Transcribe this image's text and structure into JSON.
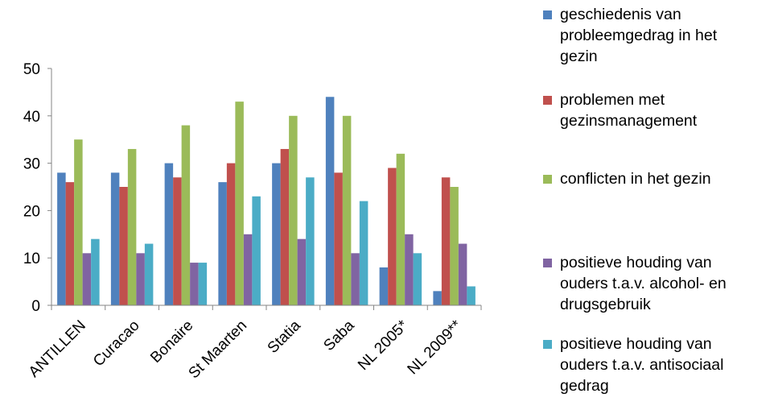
{
  "chart_data": {
    "type": "bar",
    "title": "",
    "xlabel": "",
    "ylabel": "",
    "ylim": [
      0,
      50
    ],
    "yticks": [
      0,
      10,
      20,
      30,
      40,
      50
    ],
    "grid": false,
    "legend_position": "right",
    "categories": [
      "ANTILLEN",
      "Curacao",
      "Bonaire",
      "St Maarten",
      "Statia",
      "Saba",
      "NL 2005*",
      "NL 2009**"
    ],
    "series": [
      {
        "name": "geschiedenis van probleemgedrag in het gezin",
        "color": "#4F81BD",
        "values": [
          28,
          28,
          30,
          26,
          30,
          44,
          8,
          3
        ]
      },
      {
        "name": "problemen met gezinsmanagement",
        "color": "#C0504D",
        "values": [
          26,
          25,
          27,
          30,
          33,
          28,
          29,
          27
        ]
      },
      {
        "name": "conflicten in het gezin",
        "color": "#9BBB59",
        "values": [
          35,
          33,
          38,
          43,
          40,
          40,
          32,
          25
        ]
      },
      {
        "name": "positieve houding van ouders t.a.v. alcohol- en drugsgebruik",
        "color": "#8064A2",
        "values": [
          11,
          11,
          9,
          15,
          14,
          11,
          15,
          13
        ]
      },
      {
        "name": "positieve houding van ouders t.a.v. antisociaal gedrag",
        "color": "#4BACC6",
        "values": [
          14,
          13,
          9,
          23,
          27,
          22,
          11,
          4
        ]
      }
    ]
  }
}
